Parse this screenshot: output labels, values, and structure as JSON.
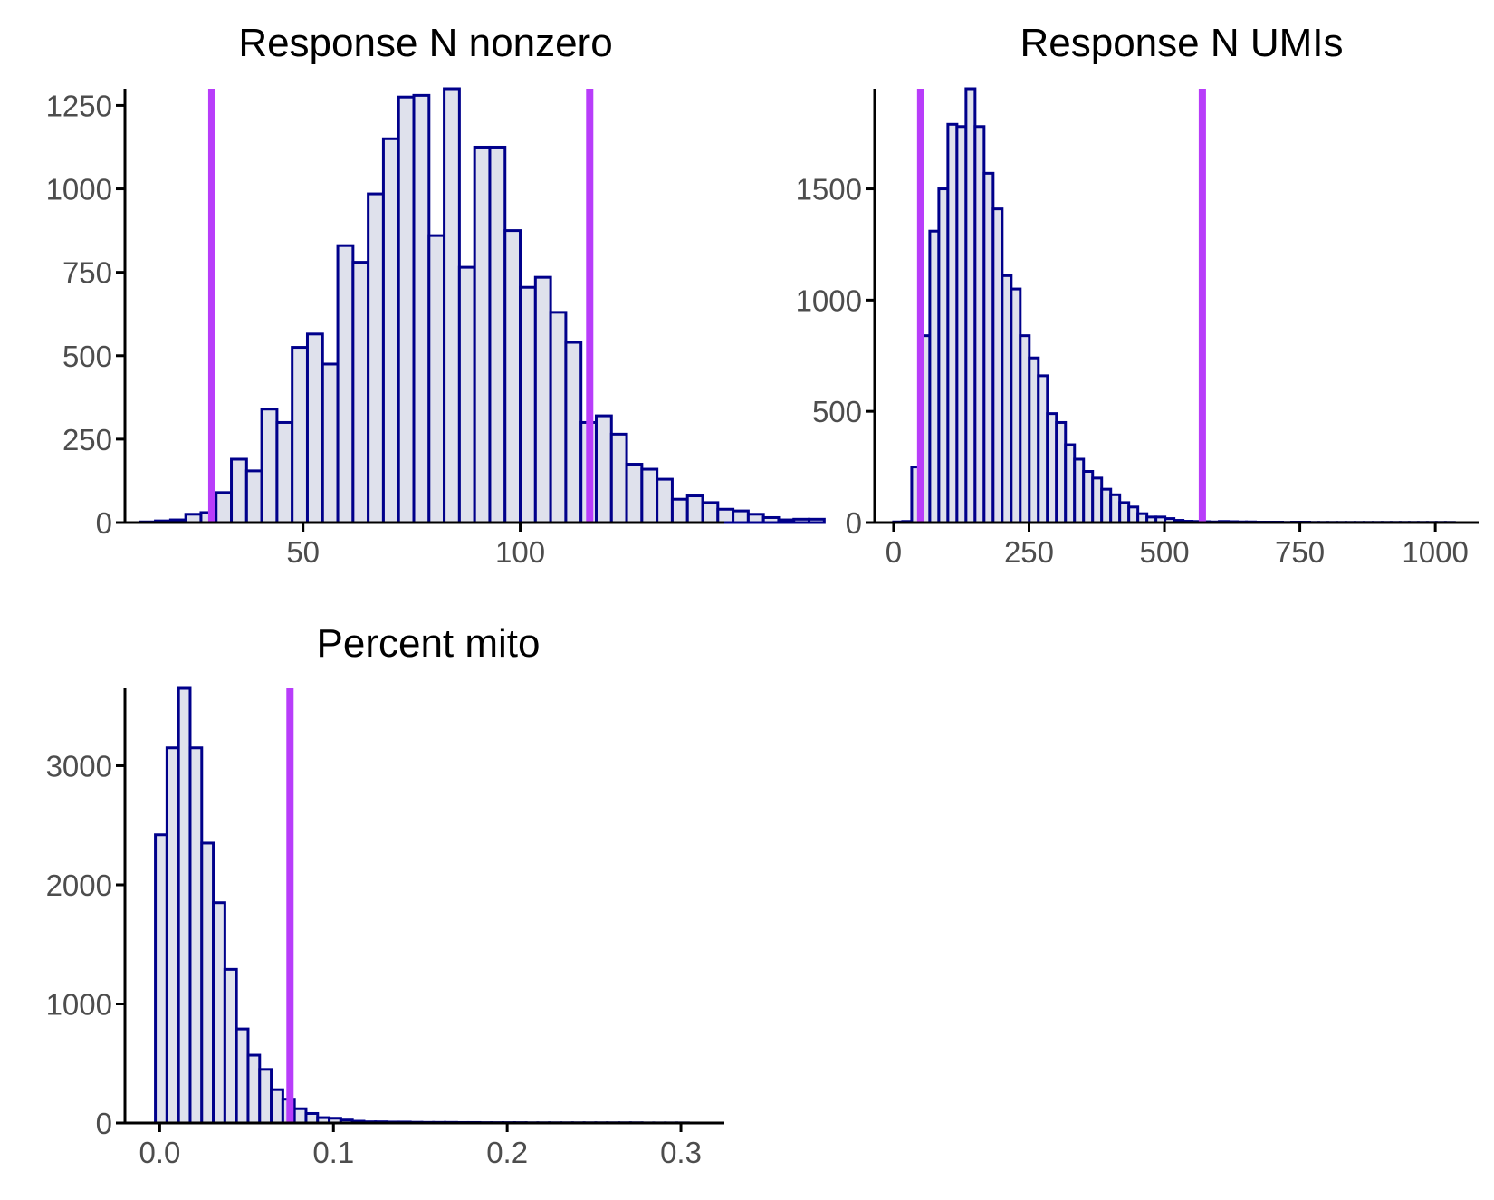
{
  "figure": {
    "background": "#ffffff",
    "bar_fill": "#dfe1ec",
    "bar_stroke": "#00008b",
    "threshold_color": "#b83dfa",
    "axis_color": "#000000"
  },
  "chart_data": [
    {
      "type": "bar",
      "title": "Response N nonzero",
      "xlabel": "",
      "ylabel": "",
      "xlim": [
        9,
        147
      ],
      "ylim": [
        0,
        1300
      ],
      "x_ticks": [
        50,
        100
      ],
      "x_tick_labels": [
        "50",
        "100"
      ],
      "y_ticks": [
        0,
        250,
        500,
        750,
        1000,
        1250
      ],
      "y_tick_labels": [
        "0",
        "250",
        "500",
        "750",
        "1000",
        "1250"
      ],
      "bin_start": 12.5,
      "bin_width": 3.5,
      "values": [
        2,
        5,
        8,
        25,
        30,
        90,
        190,
        155,
        340,
        300,
        525,
        565,
        475,
        830,
        780,
        985,
        1150,
        1275,
        1280,
        860,
        1300,
        765,
        1125,
        1125,
        875,
        705,
        735,
        630,
        540,
        300,
        320,
        265,
        175,
        160,
        130,
        70,
        80,
        60,
        40,
        35,
        25,
        15,
        8,
        10,
        10
      ],
      "thresholds": [
        29,
        116
      ],
      "grid": false,
      "legend": "none"
    },
    {
      "type": "bar",
      "title": "Response N UMIs",
      "xlabel": "",
      "ylabel": "",
      "xlim": [
        -35,
        1080
      ],
      "ylim": [
        0,
        1950
      ],
      "x_ticks": [
        0,
        250,
        500,
        750,
        1000
      ],
      "x_tick_labels": [
        "0",
        "250",
        "500",
        "750",
        "1000"
      ],
      "y_ticks": [
        0,
        500,
        1000,
        1500
      ],
      "y_tick_labels": [
        "0",
        "500",
        "1000",
        "1500"
      ],
      "bin_start": 0,
      "bin_width": 16.7,
      "values": [
        3,
        5,
        250,
        840,
        1310,
        1500,
        1790,
        1780,
        1950,
        1780,
        1570,
        1410,
        1110,
        1050,
        840,
        740,
        660,
        490,
        450,
        350,
        285,
        230,
        200,
        150,
        125,
        90,
        70,
        40,
        25,
        25,
        18,
        10,
        6,
        5,
        4,
        3,
        5,
        4,
        3,
        3,
        2,
        2,
        2,
        1,
        2,
        2,
        1,
        1,
        1,
        1,
        1,
        1,
        1,
        1,
        1,
        1,
        1,
        1,
        1,
        1,
        1,
        1
      ],
      "thresholds": [
        50,
        570
      ],
      "grid": false,
      "legend": "none"
    },
    {
      "type": "bar",
      "title": "Percent mito",
      "xlabel": "",
      "ylabel": "",
      "xlim": [
        -0.02,
        0.325
      ],
      "ylim": [
        0,
        3650
      ],
      "x_ticks": [
        0.0,
        0.1,
        0.2,
        0.3
      ],
      "x_tick_labels": [
        "0.0",
        "0.1",
        "0.2",
        "0.3"
      ],
      "y_ticks": [
        0,
        1000,
        2000,
        3000
      ],
      "y_tick_labels": [
        "0",
        "1000",
        "2000",
        "3000"
      ],
      "bin_start": -0.0025,
      "bin_width": 0.00667,
      "values": [
        2420,
        3150,
        3650,
        3150,
        2350,
        1850,
        1290,
        790,
        570,
        450,
        280,
        200,
        120,
        80,
        45,
        40,
        25,
        15,
        10,
        10,
        8,
        8,
        6,
        5,
        5,
        5,
        4,
        4,
        3,
        3,
        3,
        3,
        2,
        2,
        2,
        2,
        2,
        2,
        2,
        2,
        2,
        2,
        1,
        1,
        1,
        1
      ],
      "thresholds": [
        0.075
      ],
      "grid": false,
      "legend": "none"
    }
  ]
}
